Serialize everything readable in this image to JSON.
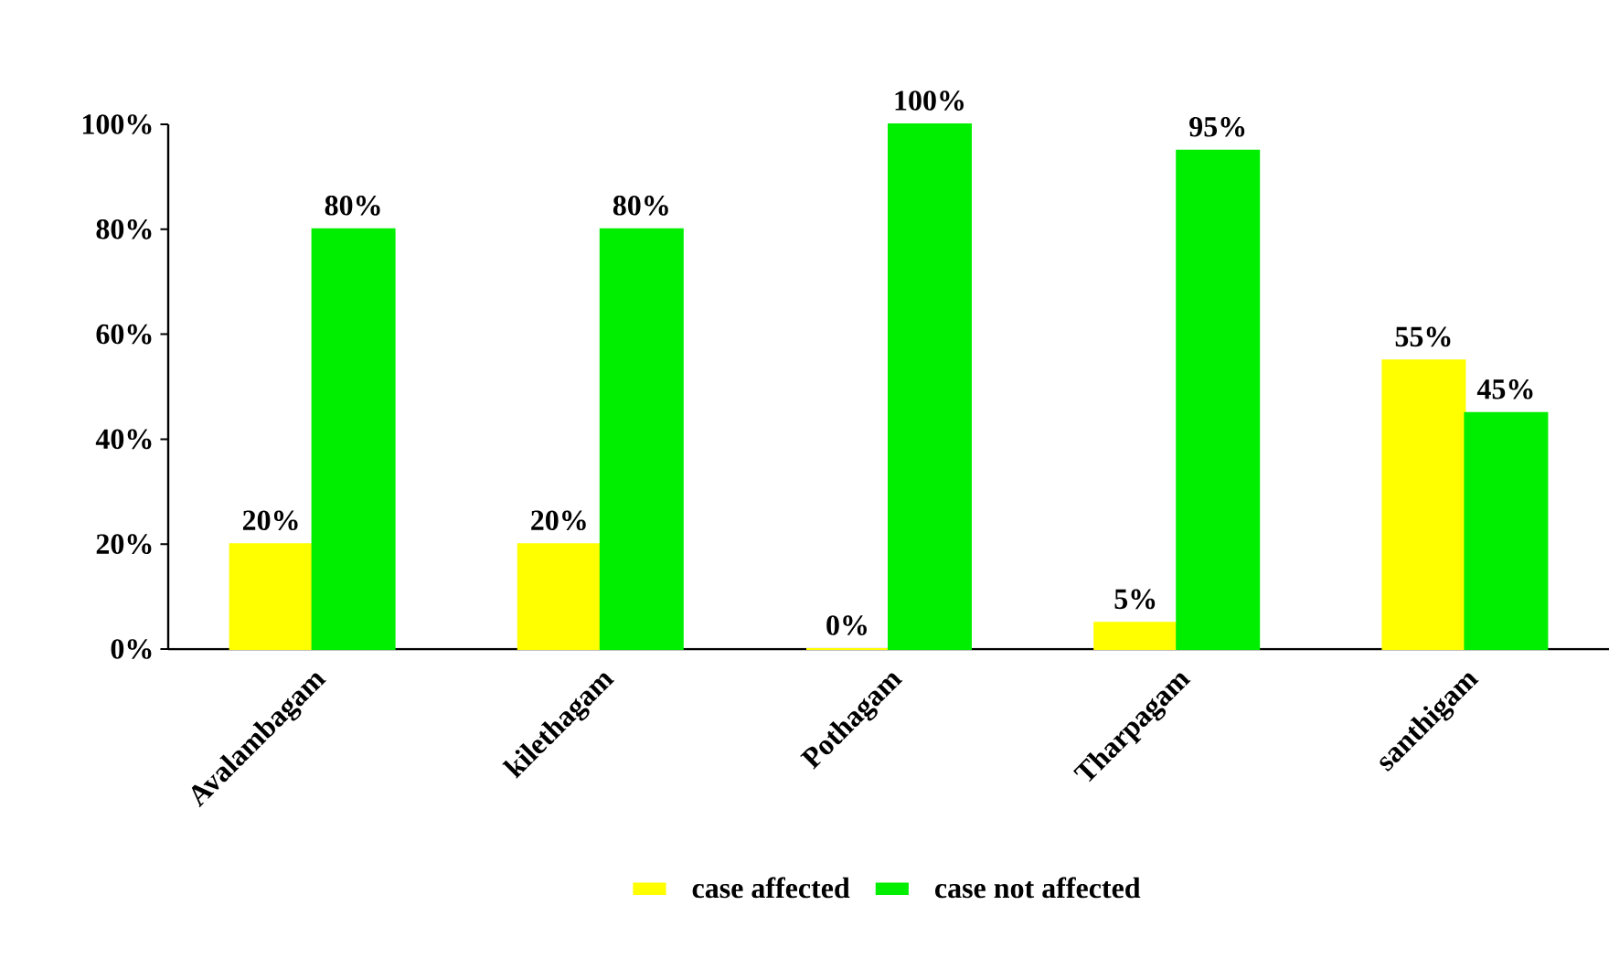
{
  "chart_data": {
    "type": "bar",
    "categories": [
      "Avalambagam",
      "kilethagam",
      "Pothagam",
      "Tharpagam",
      "santhigam"
    ],
    "series": [
      {
        "name": "case affected",
        "color": "#ffff00",
        "values": [
          20,
          20,
          0,
          5,
          55
        ],
        "value_labels": [
          "20%",
          "20%",
          "0%",
          "5%",
          "55%"
        ]
      },
      {
        "name": "case not affected",
        "color": "#00ee00",
        "values": [
          80,
          80,
          100,
          95,
          45
        ],
        "value_labels": [
          "80%",
          "80%",
          "100%",
          "95%",
          "45%"
        ]
      }
    ],
    "ylim": [
      0,
      100
    ],
    "yticks": [
      {
        "value": 0,
        "label": "0%"
      },
      {
        "value": 20,
        "label": "20%"
      },
      {
        "value": 40,
        "label": "40%"
      },
      {
        "value": 60,
        "label": "60%"
      },
      {
        "value": 80,
        "label": "80%"
      },
      {
        "value": 100,
        "label": "100%"
      }
    ],
    "grid": false,
    "legend": "bottom"
  }
}
